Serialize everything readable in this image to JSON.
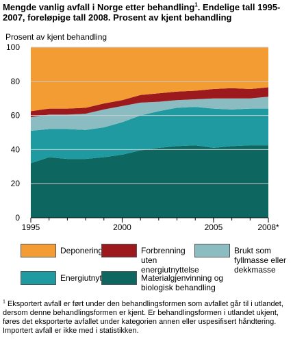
{
  "title": {
    "text_before": "Mengde vanlig avfall i Norge etter behandling",
    "sup": "1",
    "text_after": ". Endelige tall 1995-2007, foreløpige tall 2008. Prosent av kjent behandling"
  },
  "footnote": {
    "sup": "1",
    "text": " Eksportert avfall er ført under den behandlingsformen som avfallet går til i utlandet, dersom denne behandlingsformen er kjent. Er behandlingsformen i utlandet ukjent, føres det eksporterte avfallet under kategorien annen eller uspesifisert håndtering. Importert avfall er ikke med i statistikken."
  },
  "colors": {
    "deponering": "#f39c34",
    "forbrenning": "#9c1a1e",
    "brukt": "#8bbcc2",
    "energi": "#1f9aa0",
    "material": "#0e6661",
    "grid": "#cccccc",
    "axis": "#000000"
  },
  "chart_data": {
    "type": "area",
    "stacked": true,
    "ylabel": "Prosent av kjent behandling",
    "ylim": [
      0,
      100
    ],
    "yticks": [
      0,
      20,
      40,
      60,
      80,
      100
    ],
    "x": [
      1995,
      1996,
      1997,
      1998,
      1999,
      2000,
      2001,
      2002,
      2003,
      2004,
      2005,
      2006,
      2007,
      2008
    ],
    "xtick_labels": [
      {
        "x": 1995,
        "label": "1995"
      },
      {
        "x": 2000,
        "label": "2000"
      },
      {
        "x": 2005,
        "label": "2005"
      },
      {
        "x": 2008,
        "label": "2008*"
      }
    ],
    "grid": "horizontal",
    "series": [
      {
        "name": "Materialgjenvinning og biologisk behandling",
        "key": "material",
        "values": [
          32,
          35.5,
          34.5,
          34.5,
          35.5,
          37,
          39.5,
          41,
          42,
          42.5,
          41,
          42,
          42.5,
          42.5
        ]
      },
      {
        "name": "Energiutnyttelse",
        "key": "energi",
        "values": [
          19,
          16.5,
          17.5,
          17,
          17.5,
          19,
          20.5,
          21.5,
          22.5,
          22.5,
          23,
          21.5,
          21.5,
          21.5
        ]
      },
      {
        "name": "Brukt som fyllmasse eller dekkmasse",
        "key": "brukt",
        "values": [
          8,
          8.5,
          8.5,
          9.5,
          10.5,
          9.5,
          7.5,
          5.5,
          4.5,
          4.5,
          6,
          6.5,
          6,
          7
        ]
      },
      {
        "name": "Forbrenning uten energiutnyttelse",
        "key": "forbrenning",
        "values": [
          3.5,
          3.5,
          3.5,
          3.5,
          3.5,
          3.5,
          4.5,
          5,
          5,
          5,
          5.5,
          6,
          5.5,
          5.5
        ]
      },
      {
        "name": "Deponering",
        "key": "deponering",
        "values": [
          37.5,
          36,
          36,
          35.5,
          33,
          31,
          28,
          27,
          26,
          25.5,
          24.5,
          24,
          24.5,
          23.5
        ]
      }
    ],
    "legend": [
      {
        "label": "Deponering",
        "key": "deponering"
      },
      {
        "label": "Forbrenning uten energiutnyttelse",
        "key": "forbrenning"
      },
      {
        "label": "Brukt som fyllmasse eller dekkmasse",
        "key": "brukt"
      },
      {
        "label": "Energiutnyttelse",
        "key": "energi"
      },
      {
        "label": "Materialgjenvinning og biologisk behandling",
        "key": "material"
      }
    ]
  }
}
